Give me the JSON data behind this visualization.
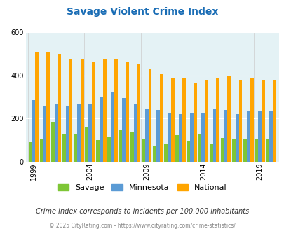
{
  "title": "Savage Violent Crime Index",
  "title_color": "#1a6db5",
  "years": [
    1999,
    2000,
    2001,
    2002,
    2003,
    2004,
    2005,
    2006,
    2007,
    2008,
    2009,
    2010,
    2011,
    2012,
    2013,
    2014,
    2015,
    2016,
    2017,
    2018,
    2019,
    2020
  ],
  "savage": [
    90,
    105,
    185,
    130,
    130,
    160,
    100,
    115,
    145,
    135,
    105,
    70,
    80,
    125,
    98,
    130,
    82,
    110,
    108,
    108,
    108,
    108
  ],
  "minnesota": [
    285,
    260,
    265,
    260,
    265,
    270,
    300,
    325,
    295,
    265,
    245,
    240,
    225,
    220,
    225,
    225,
    245,
    240,
    220,
    235,
    235,
    235
  ],
  "national": [
    510,
    510,
    500,
    475,
    475,
    465,
    475,
    475,
    465,
    455,
    430,
    405,
    390,
    390,
    365,
    375,
    385,
    395,
    380,
    385,
    375,
    375
  ],
  "savage_color": "#7ec636",
  "minnesota_color": "#5b9bd5",
  "national_color": "#ffa500",
  "bg_color": "#e4f2f5",
  "ylim": [
    0,
    600
  ],
  "yticks": [
    0,
    200,
    400,
    600
  ],
  "xlabel_years": [
    1999,
    2004,
    2009,
    2014,
    2019
  ],
  "subtitle": "Crime Index corresponds to incidents per 100,000 inhabitants",
  "subtitle_color": "#333333",
  "footer": "© 2025 CityRating.com - https://www.cityrating.com/crime-statistics/",
  "footer_color": "#888888",
  "legend_labels": [
    "Savage",
    "Minnesota",
    "National"
  ],
  "grid_color": "#ffffff"
}
